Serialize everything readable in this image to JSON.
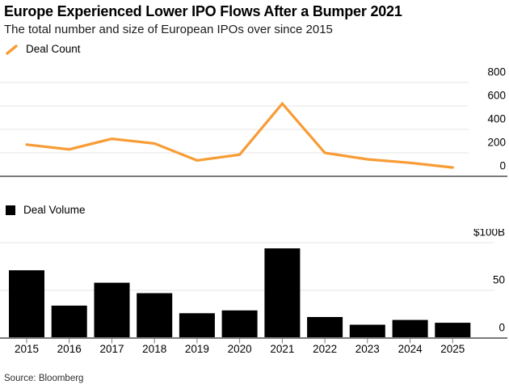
{
  "header": {
    "title": "Europe Experienced Lower IPO Flows After a Bumper 2021",
    "subtitle": "The total number and size of European IPOs over since 2015"
  },
  "source": "Source: Bloomberg",
  "colors": {
    "line_orange": "#F89C35",
    "bar_black": "#000000",
    "gridline": "#E6E6E6",
    "axis": "#7B7B7B",
    "text": "#000000"
  },
  "chart_data": [
    {
      "type": "line",
      "legend": "Deal Count",
      "legend_position": "top-left",
      "x": [
        2015,
        2016,
        2017,
        2018,
        2019,
        2020,
        2021,
        2022,
        2023,
        2024,
        2025
      ],
      "values": [
        270,
        230,
        320,
        280,
        135,
        185,
        620,
        200,
        145,
        115,
        75
      ],
      "ylim": [
        0,
        800
      ],
      "yticks": [
        0,
        200,
        400,
        600,
        800
      ],
      "ytick_labels": [
        "0",
        "200",
        "400",
        "600",
        "800"
      ],
      "ytick_side": "right",
      "grid": true,
      "line_color": "#F89C35"
    },
    {
      "type": "bar",
      "legend": "Deal Volume",
      "legend_position": "top-left",
      "categories": [
        "2015",
        "2016",
        "2017",
        "2018",
        "2019",
        "2020",
        "2021",
        "2022",
        "2023",
        "2024",
        "2025"
      ],
      "values": [
        71,
        34,
        58,
        47,
        26,
        29,
        94,
        22,
        14,
        19,
        16
      ],
      "ylim": [
        0,
        100
      ],
      "yticks": [
        0,
        50,
        100
      ],
      "ytick_labels": [
        "0",
        "50",
        "$100B"
      ],
      "ytick_side": "right",
      "grid": true,
      "bar_color": "#000000"
    }
  ]
}
